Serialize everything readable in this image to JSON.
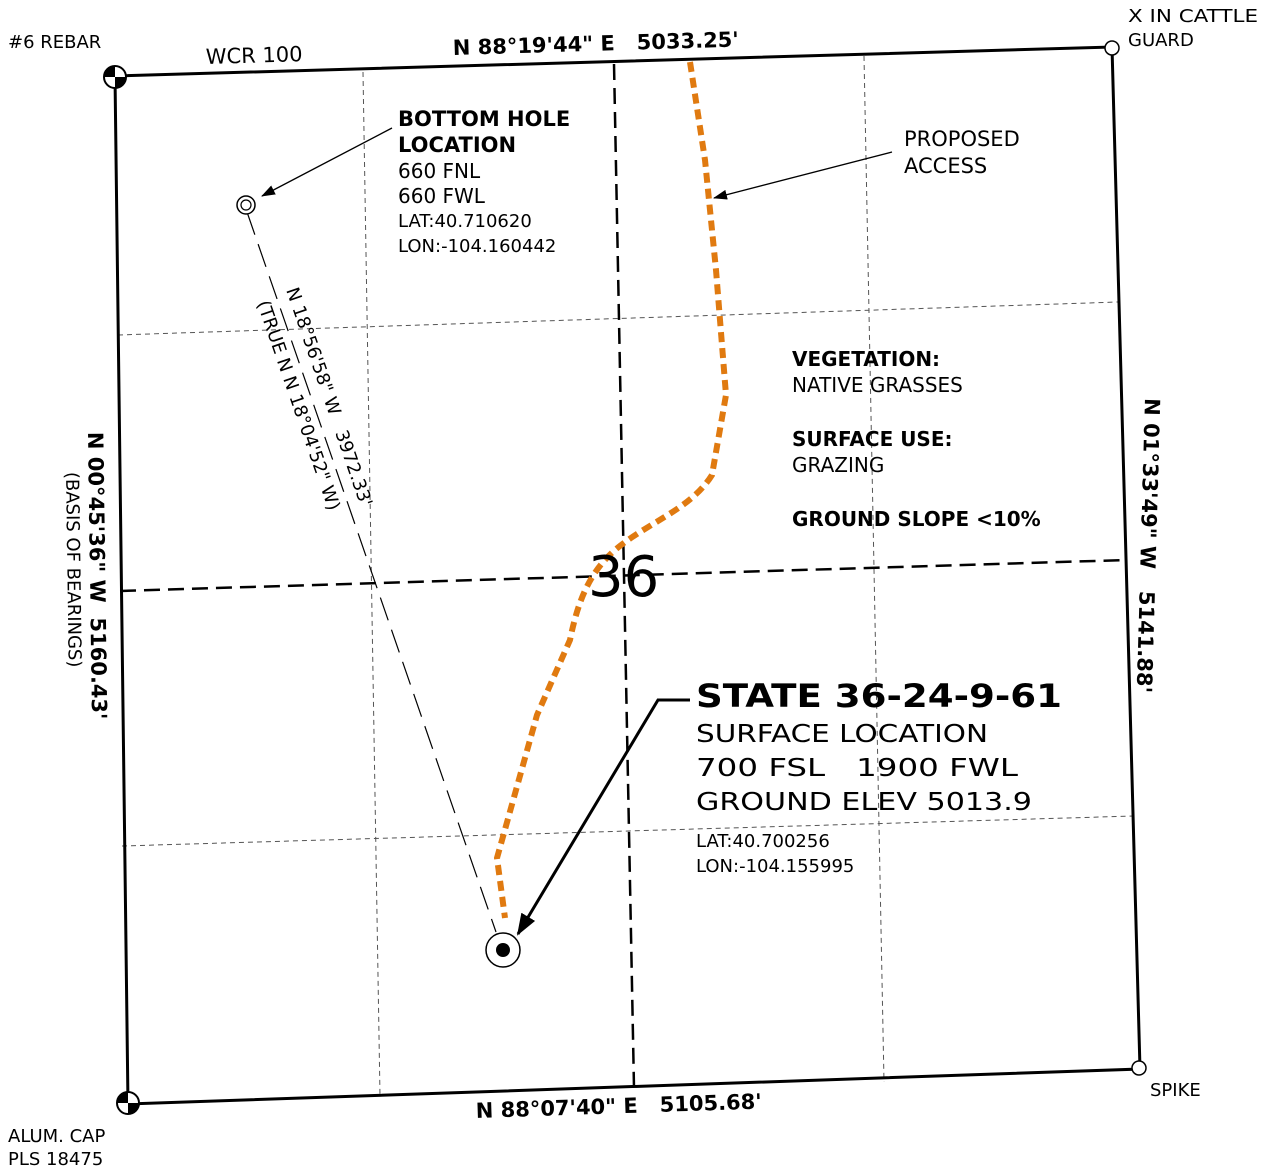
{
  "colors": {
    "background": "#ffffff",
    "line": "#000000",
    "access_road": "#E07A10",
    "grid": "#555555"
  },
  "corners": {
    "nw": {
      "label": "#6 REBAR",
      "icon": "quartered-monument-icon"
    },
    "ne": {
      "label_line1": "X IN CATTLE",
      "label_line2": "GUARD",
      "icon": "open-circle-monument-icon"
    },
    "sw": {
      "label_line1": "ALUM. CAP",
      "label_line2": "PLS 18475",
      "icon": "quartered-monument-icon"
    },
    "se": {
      "label": "SPIKE",
      "icon": "open-circle-monument-icon"
    }
  },
  "road_label": "WCR 100",
  "boundaries": {
    "north": "N 88°19'44\" E   5033.25'",
    "south": "N 88°07'40\" E   5105.68'",
    "west": "N 00°45'36\" W  5160.43'",
    "west_note": "(BASIS OF BEARINGS)",
    "east": "N 01°33'49\" W   5141.88'"
  },
  "section_number": "36",
  "bottom_hole": {
    "title_line1": "BOTTOM HOLE",
    "title_line2": "LOCATION",
    "fnl": "660 FNL",
    "fwl": "660 FWL",
    "lat": "LAT:40.710620",
    "lon": "LON:-104.160442",
    "icon": "bottom-hole-icon"
  },
  "well_path": {
    "bearing": "N 18°56'58\" W   3972.33'",
    "true_bearing": "(TRUE N N 18°04'52\" W)"
  },
  "proposed_access": {
    "line1": "PROPOSED",
    "line2": "ACCESS"
  },
  "site_info": {
    "vegetation_label": "VEGETATION:",
    "vegetation_value": "NATIVE GRASSES",
    "surface_use_label": "SURFACE USE:",
    "surface_use_value": "GRAZING",
    "ground_slope": "GROUND SLOPE <10%"
  },
  "well": {
    "name": "STATE 36-24-9-61",
    "surface_location": "SURFACE LOCATION",
    "footages": "700 FSL   1900 FWL",
    "ground_elev": "GROUND ELEV 5013.9",
    "lat": "LAT:40.700256",
    "lon": "LON:-104.155995",
    "icon": "surface-hole-icon"
  }
}
